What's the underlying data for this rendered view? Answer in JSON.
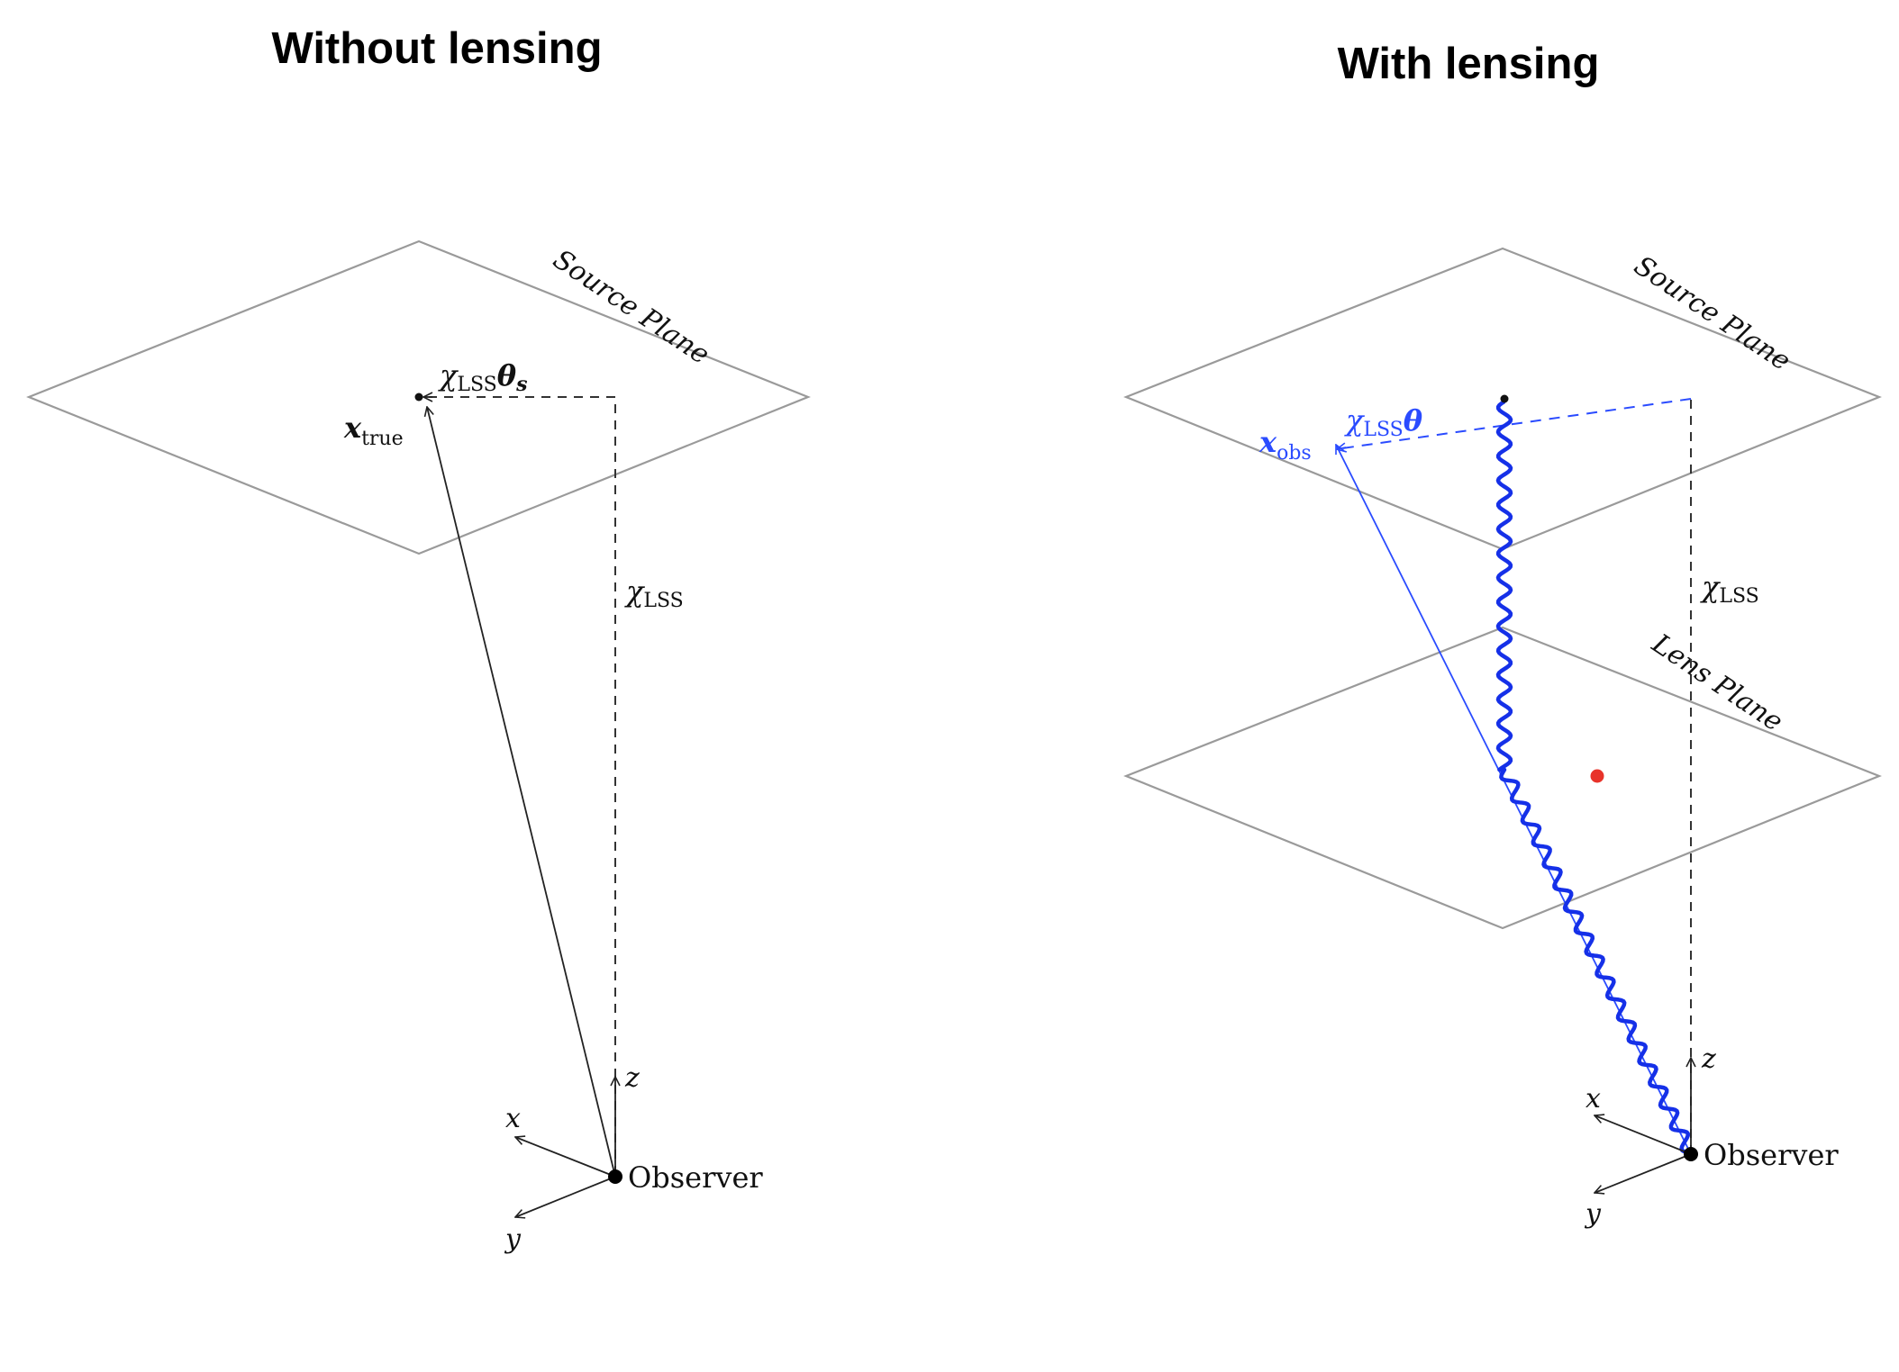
{
  "left_panel": {
    "title": "Without lensing",
    "source_plane_label": "Source Plane",
    "angle_label": "χLSSθs",
    "position_label": "xtrue",
    "distance_label": "χLSS",
    "observer_label": "Observer",
    "axes": {
      "x": "x",
      "y": "y",
      "z": "z"
    }
  },
  "right_panel": {
    "title": "With lensing",
    "source_plane_label": "Source Plane",
    "lens_plane_label": "Lens Plane",
    "angle_label": "χLSSθ",
    "position_label": "xobs",
    "distance_label": "χLSS",
    "observer_label": "Observer",
    "axes": {
      "x": "x",
      "y": "y",
      "z": "z"
    }
  },
  "colors": {
    "observed_ray": "#2a4bff",
    "light_path": "#1530e8",
    "lens_mass": "#e8332a",
    "plane_outline": "#9a9a9a"
  }
}
